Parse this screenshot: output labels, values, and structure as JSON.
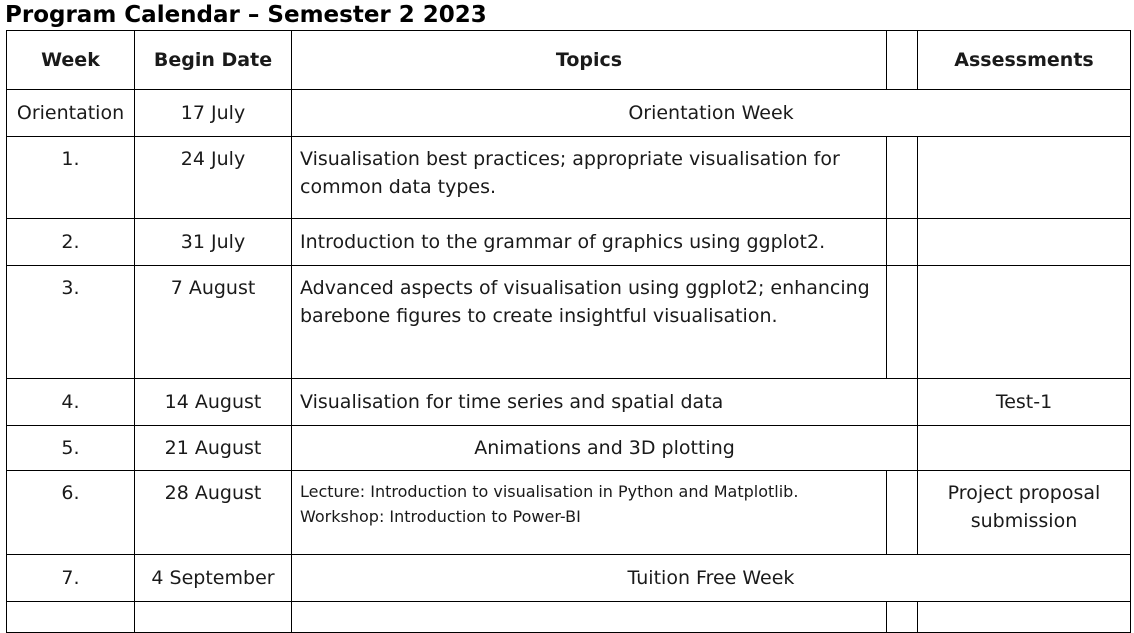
{
  "title": "Program Calendar – Semester 2 2023",
  "headers": {
    "week": "Week",
    "begin_date": "Begin Date",
    "topics": "Topics",
    "blank": "",
    "assessments": "Assessments"
  },
  "rows": [
    {
      "week": "Orientation",
      "date": "17 July",
      "topic": "Orientation Week",
      "assessment": ""
    },
    {
      "week": "1.",
      "date": "24 July",
      "topic": "Visualisation best practices; appropriate visualisation for common data types.",
      "assessment": ""
    },
    {
      "week": "2.",
      "date": "31 July",
      "topic": "Introduction to the grammar of graphics using ggplot2.",
      "assessment": ""
    },
    {
      "week": "3.",
      "date": "7 August",
      "topic": "Advanced aspects of visualisation using ggplot2; enhancing barebone figures to create insightful visualisation.",
      "assessment": ""
    },
    {
      "week": "4.",
      "date": "14 August",
      "topic": "Visualisation for time series and spatial data",
      "assessment": "Test-1"
    },
    {
      "week": "5.",
      "date": "21 August",
      "topic": "Animations and 3D plotting",
      "assessment": ""
    },
    {
      "week": "6.",
      "date": "28 August",
      "topic_line1": "Lecture: Introduction to visualisation in Python and Matplotlib.",
      "topic_line2": "Workshop: Introduction to Power-BI",
      "assessment": "Project proposal submission"
    },
    {
      "week": "7.",
      "date": "4 September",
      "topic": "Tuition Free Week",
      "assessment": ""
    }
  ]
}
